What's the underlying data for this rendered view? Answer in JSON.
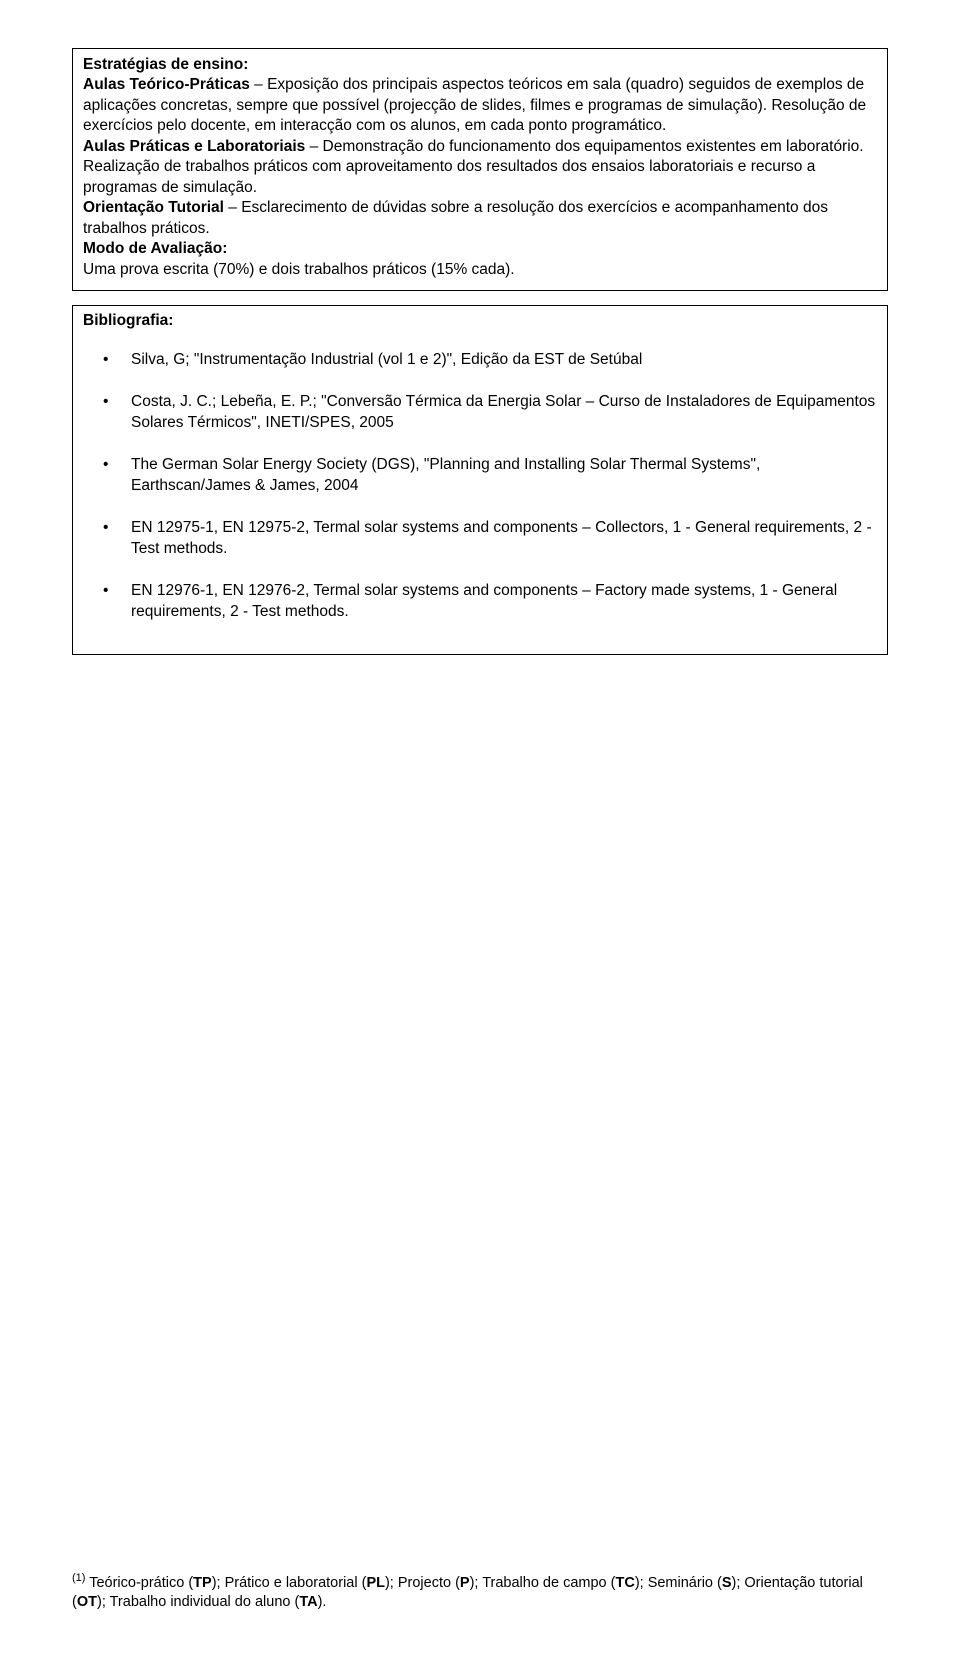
{
  "box1": {
    "heading_estrategias": "Estratégias de ensino:",
    "tp_label": "Aulas Teórico-Práticas",
    "tp_text": " – Exposição dos principais aspectos teóricos em sala (quadro) seguidos de exemplos de aplicações concretas, sempre que possível (projecção de slides, filmes e programas de simulação). Resolução de exercícios pelo docente, em interacção com os alunos, em cada ponto programático.",
    "pl_label": "Aulas Práticas e Laboratoriais",
    "pl_text": " – Demonstração do funcionamento dos equipamentos existentes em laboratório. Realização de trabalhos práticos com aproveitamento dos resultados dos ensaios laboratoriais e recurso a programas de simulação.",
    "ot_label": "Orientação Tutorial",
    "ot_text": " – Esclarecimento de dúvidas sobre a resolução dos exercícios e acompanhamento dos trabalhos práticos.",
    "heading_modo": "Modo de Avaliação:",
    "modo_text": "Uma prova escrita (70%) e dois trabalhos práticos (15% cada)."
  },
  "box2": {
    "heading": "Bibliografia:",
    "items": [
      "Silva, G; \"Instrumentação Industrial (vol 1 e 2)\", Edição da EST de Setúbal",
      "Costa, J. C.; Lebeña, E. P.; \"Conversão Térmica da Energia Solar – Curso de Instaladores de Equipamentos Solares Térmicos\", INETI/SPES, 2005",
      "The German Solar Energy Society (DGS), \"Planning and Installing Solar Thermal Systems\", Earthscan/James & James, 2004",
      "EN 12975-1, EN 12975-2, Termal solar systems and components – Collectors, 1 - General requirements, 2 - Test methods.",
      "EN 12976-1, EN 12976-2, Termal solar systems and components – Factory made systems, 1 - General requirements, 2 - Test methods."
    ]
  },
  "footnote": {
    "sup": "(1)",
    "pre": " Teórico-prático (",
    "tp": "TP",
    "s1": "); Prático e laboratorial (",
    "pl": "PL",
    "s2": "); Projecto (",
    "p": "P",
    "s3": "); Trabalho de campo (",
    "tc": "TC",
    "s4": "); Seminário (",
    "s": "S",
    "s5": "); Orientação tutorial (",
    "ot": "OT",
    "s6": "); Trabalho individual do aluno (",
    "ta": "TA",
    "s7": ")."
  },
  "bullet_char": "•"
}
